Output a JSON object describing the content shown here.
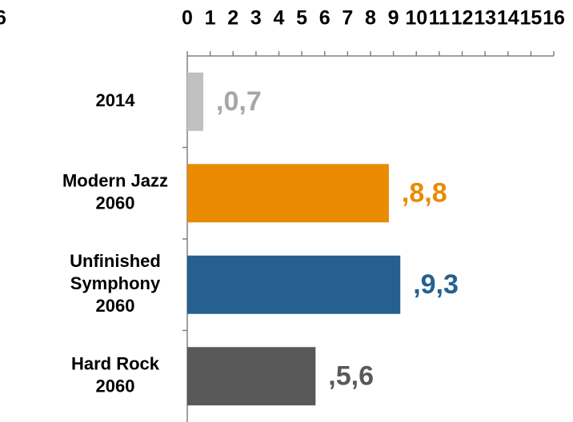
{
  "chart_data": {
    "type": "barh",
    "annotation": "6",
    "categories": [
      [
        "2014"
      ],
      [
        "Modern Jazz",
        "2060"
      ],
      [
        "Unfinished",
        "Symphony",
        "2060"
      ],
      [
        "Hard Rock",
        "2060"
      ]
    ],
    "values": [
      0.7,
      8.8,
      9.3,
      5.6
    ],
    "value_labels": [
      ",0,7",
      ",8,8",
      ",9,3",
      ",5,6"
    ],
    "colors": [
      "#c0c0c0",
      "#e98b00",
      "#256090",
      "#595959"
    ],
    "label_colors": [
      "#a6a6a6",
      "#e98b00",
      "#256090",
      "#595959"
    ],
    "xlim": [
      0,
      16
    ],
    "xticks": [
      0,
      1,
      2,
      3,
      4,
      5,
      6,
      7,
      8,
      9,
      10,
      11,
      12,
      13,
      14,
      15,
      16
    ]
  }
}
